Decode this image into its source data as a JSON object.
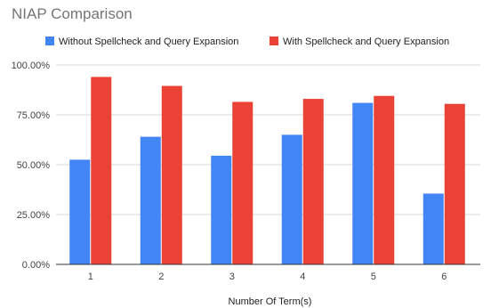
{
  "chart_data": {
    "type": "bar",
    "title": "NIAP Comparison",
    "xlabel": "Number Of Term(s)",
    "ylabel": "",
    "categories": [
      "1",
      "2",
      "3",
      "4",
      "5",
      "6"
    ],
    "series": [
      {
        "name": "Without Spellcheck and Query Expansion",
        "color": "#4285f4",
        "values": [
          52.5,
          64,
          54.5,
          65,
          81,
          35.5
        ]
      },
      {
        "name": "With Spellcheck and Query Expansion",
        "color": "#ea4335",
        "values": [
          94,
          89.5,
          81.5,
          83,
          84.5,
          80.5
        ]
      }
    ],
    "ylim": [
      0,
      100
    ],
    "yticks": [
      "0.00%",
      "25.00%",
      "50.00%",
      "75.00%",
      "100.00%"
    ],
    "grid": true,
    "legend_position": "top"
  }
}
